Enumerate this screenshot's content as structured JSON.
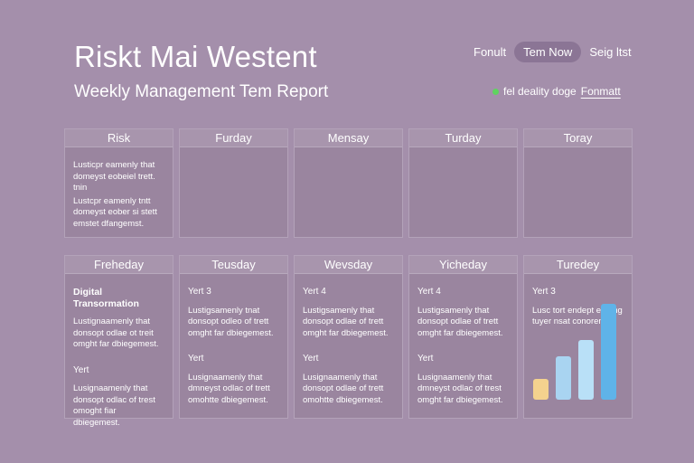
{
  "header": {
    "title": "Riskt Mai Westent",
    "subtitle": "Weekly Management Tem Report"
  },
  "nav": {
    "items": [
      "Fonult",
      "Tem Now",
      "Seig ltst"
    ],
    "active_index": 1
  },
  "status": {
    "text": "fel deality doge",
    "link": "Fonmatt",
    "dot_color": "#5fd35f"
  },
  "rows": [
    {
      "cards": [
        {
          "head": "Risk",
          "tag": "",
          "paragraphs": [
            "Lusticpr eamenly that domeyst eobeiel trett. tnin",
            "Lustcpr eamenly tntt domeyst eober si stett emstet dfangemst."
          ],
          "tag2": "",
          "paragraphs2": []
        },
        {
          "head": "Furday",
          "tag": "",
          "paragraphs": [],
          "tag2": "",
          "paragraphs2": []
        },
        {
          "head": "Mensay",
          "tag": "",
          "paragraphs": [],
          "tag2": "",
          "paragraphs2": []
        },
        {
          "head": "Turday",
          "tag": "",
          "paragraphs": [],
          "tag2": "",
          "paragraphs2": []
        },
        {
          "head": "Toray",
          "tag": "",
          "paragraphs": [],
          "tag2": "",
          "paragraphs2": []
        }
      ]
    },
    {
      "cards": [
        {
          "head": "Freheday",
          "tag": "Digital Transormation",
          "paragraphs": [
            "Lustignaamenly that donsopt odlae ot treit omght far dbiegemest."
          ],
          "tag2": "Yert",
          "paragraphs2": [
            "Lusignaamenly that donsopt odlac of trest omoght fiar dbiegemest."
          ]
        },
        {
          "head": "Teusday",
          "tag": "Yert 3",
          "paragraphs": [
            "Lustigsamenly tnat donsopt odleo of trett omght far dbiegemest."
          ],
          "tag2": "Yert",
          "paragraphs2": [
            "Lusignaamenly that dmneyst odlac of trett omohtte dbiegemest."
          ]
        },
        {
          "head": "Wevsday",
          "tag": "Yert 4",
          "paragraphs": [
            "Lustigsamenly that donsopt odlae of trett omght far dbiegemest."
          ],
          "tag2": "Yert",
          "paragraphs2": [
            "Lusignaamenly that donsopt odlae of trett omohtte dbiegemest."
          ]
        },
        {
          "head": "Yicheday",
          "tag": "Yert 4",
          "paragraphs": [
            "Lustigsamenly that donsopt odlae of trett omght far dbiegemest."
          ],
          "tag2": "Yert",
          "paragraphs2": [
            "Lusignaamenly that dmneyst odlac of trest omght far dbiegemest."
          ]
        },
        {
          "head": "Turedey",
          "tag": "Yert 3",
          "paragraphs": [
            "Lusc tort endept eodtng tuyer nsat conorenct."
          ],
          "tag2": "",
          "paragraphs2": [],
          "chart": {
            "values": [
              0.22,
              0.45,
              0.62,
              1.0
            ],
            "colors": [
              "#f4d28e",
              "#a9d4f1",
              "#b9e0f7",
              "#5fb3e8"
            ]
          }
        }
      ]
    }
  ]
}
